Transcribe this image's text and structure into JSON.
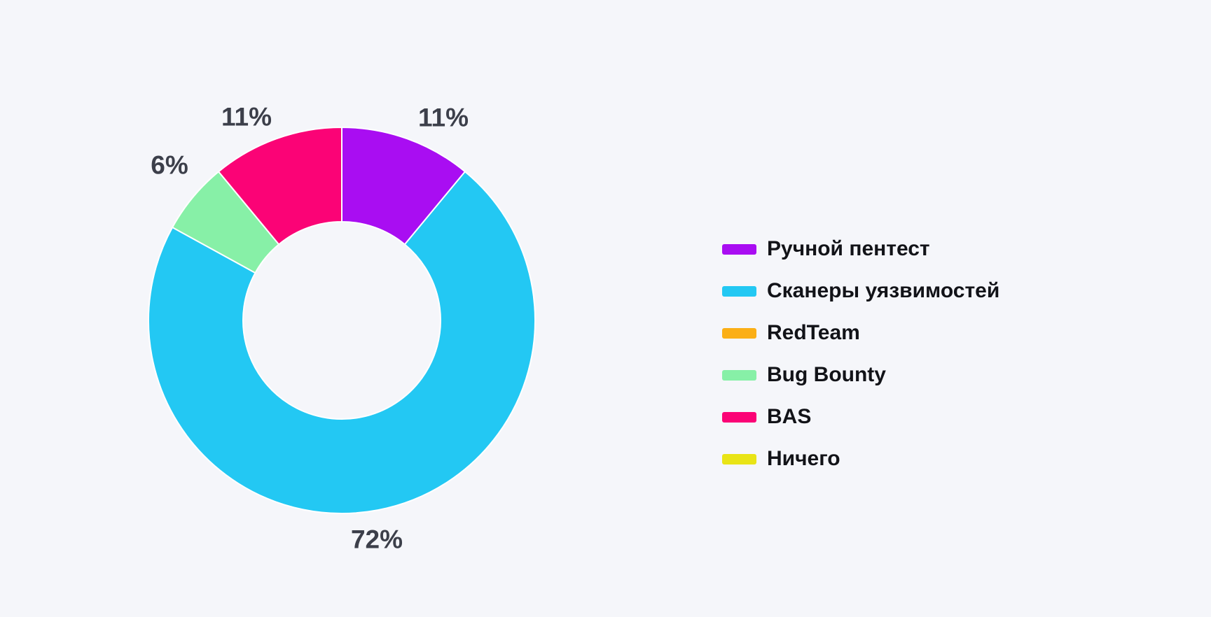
{
  "page": {
    "background": "#f5f6fa"
  },
  "chart_data": {
    "type": "pie",
    "subtype": "donut",
    "title": "",
    "legend_position": "right",
    "grid": false,
    "donut_hole_ratio": 0.51,
    "total": 100,
    "slices": [
      {
        "label": "Ручной пентест",
        "value": 11,
        "display_value": "11%",
        "color": "#a90df2"
      },
      {
        "label": "Сканеры уязвимостей",
        "value": 72,
        "display_value": "72%",
        "color": "#23c8f3"
      },
      {
        "label": "RedTeam",
        "value": 0,
        "display_value": "",
        "color": "#fbaf15"
      },
      {
        "label": "Bug Bounty",
        "value": 6,
        "display_value": "6%",
        "color": "#87f0a7"
      },
      {
        "label": "BAS",
        "value": 11,
        "display_value": "11%",
        "color": "#fb0376"
      },
      {
        "label": "Ничего",
        "value": 0,
        "display_value": "",
        "color": "#e9e416"
      }
    ],
    "label_color": "#3c3f4a",
    "legend_text_color": "#121318",
    "slice_border_color": "#ffffff"
  }
}
